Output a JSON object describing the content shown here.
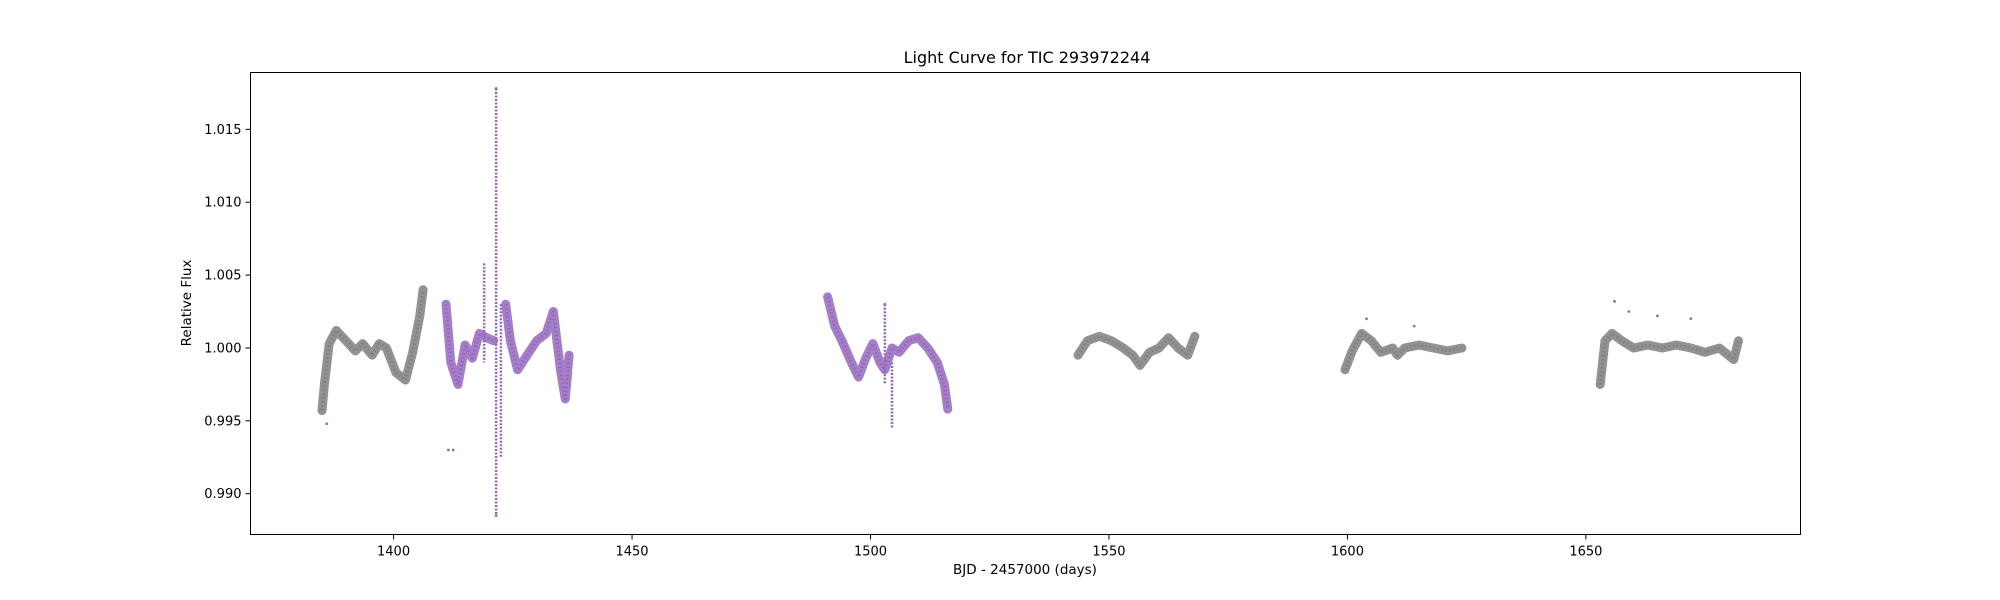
{
  "chart_data": {
    "type": "scatter",
    "title": "Light Curve for TIC 293972244",
    "xlabel": "BJD - 2457000 (days)",
    "ylabel": "Relative Flux",
    "xlim": [
      1370,
      1695
    ],
    "ylim": [
      0.9872,
      1.0189
    ],
    "xticks": [
      1400,
      1450,
      1500,
      1550,
      1600,
      1650
    ],
    "yticks": [
      0.99,
      0.995,
      1.0,
      1.005,
      1.01,
      1.015
    ],
    "ytick_labels": [
      "0.990",
      "0.995",
      "1.000",
      "1.005",
      "1.010",
      "1.015"
    ],
    "grid": false,
    "colors": {
      "gray": "#7f7f7f",
      "purple": "#9467bd"
    },
    "series": [
      {
        "color": "gray",
        "segments": [
          {
            "x": [
              1385.0,
              1385.5,
              1386.5,
              1388.0,
              1390.0,
              1392.0,
              1393.5,
              1395.5,
              1397.0,
              1398.5,
              1400.5,
              1402.5,
              1404.0,
              1405.5,
              1406.2
            ],
            "y": [
              0.9957,
              0.9975,
              1.0003,
              1.0012,
              1.0005,
              0.9998,
              1.0003,
              0.9995,
              1.0003,
              1.0,
              0.9983,
              0.9978,
              0.9997,
              1.0022,
              1.004
            ]
          },
          {
            "x": [
              1543.5,
              1545.5,
              1548.0,
              1550.5,
              1553.0,
              1555.0,
              1556.5,
              1558.5,
              1560.5,
              1562.5,
              1564.5,
              1566.5,
              1568.0
            ],
            "y": [
              0.9995,
              1.0005,
              1.0008,
              1.0005,
              1.0,
              0.9995,
              0.9988,
              0.9997,
              1.0,
              1.0007,
              1.0,
              0.9995,
              1.0008
            ]
          },
          {
            "x": [
              1599.5,
              1601.0,
              1603.0,
              1605.0,
              1607.0,
              1609.5,
              1610.5,
              1612.0,
              1615.0,
              1618.0,
              1621.0,
              1624.0
            ],
            "y": [
              0.9985,
              0.9998,
              1.001,
              1.0005,
              0.9997,
              1.0,
              0.9995,
              1.0,
              1.0002,
              1.0,
              0.9998,
              1.0
            ]
          },
          {
            "x": [
              1653.0,
              1654.0,
              1655.5,
              1657.5,
              1660.0,
              1663.0,
              1666.0,
              1669.0,
              1672.0,
              1675.0,
              1678.0,
              1681.0,
              1682.0
            ],
            "y": [
              0.9975,
              1.0005,
              1.001,
              1.0005,
              1.0,
              1.0002,
              1.0,
              1.0002,
              1.0,
              0.9997,
              1.0,
              0.9992,
              1.0005
            ]
          }
        ],
        "outliers": {
          "x": [
            1386.0,
            1411.5,
            1604.0,
            1614.0,
            1656.0,
            1659.0,
            1665.0,
            1672.0
          ],
          "y": [
            0.9948,
            0.993,
            1.002,
            1.0015,
            1.0032,
            1.0025,
            1.0022,
            1.002
          ]
        }
      },
      {
        "color": "purple",
        "segments": [
          {
            "x": [
              1411.0,
              1412.0,
              1413.5,
              1415.0,
              1416.5,
              1418.0,
              1419.5,
              1421.0
            ],
            "y": [
              1.003,
              0.999,
              0.9975,
              1.0002,
              0.9993,
              1.001,
              1.0007,
              1.0005
            ]
          },
          {
            "x": [
              1423.5,
              1424.5,
              1426.0,
              1428.0,
              1430.0,
              1432.0,
              1433.5,
              1435.0,
              1436.0,
              1436.8
            ],
            "y": [
              1.003,
              1.0005,
              0.9985,
              0.9995,
              1.0005,
              1.001,
              1.0025,
              0.9985,
              0.9965,
              0.9995
            ]
          },
          {
            "x": [
              1491.0,
              1492.5,
              1494.0,
              1496.0,
              1497.5,
              1499.0,
              1500.5,
              1502.0,
              1503.0,
              1504.5,
              1506.0,
              1508.0,
              1510.0,
              1512.0,
              1514.0,
              1515.5,
              1516.2
            ],
            "y": [
              1.0035,
              1.0015,
              1.0005,
              0.999,
              0.998,
              0.9993,
              1.0003,
              0.999,
              0.9985,
              1.0,
              0.9997,
              1.0005,
              1.0007,
              1.0,
              0.999,
              0.9975,
              0.9958
            ]
          }
        ],
        "spikes": [
          {
            "x": 1421.5,
            "y_min": 0.9885,
            "y_max": 1.0178
          },
          {
            "x": 1422.5,
            "y_min": 0.9925,
            "y_max": 1.003
          },
          {
            "x": 1419.0,
            "y_min": 0.999,
            "y_max": 1.0058
          },
          {
            "x": 1503.0,
            "y_min": 0.9975,
            "y_max": 1.003
          },
          {
            "x": 1504.5,
            "y_min": 0.9945,
            "y_max": 0.999
          }
        ],
        "outliers": {
          "x": [
            1412.5,
            1421.5,
            1421.5,
            1503.0
          ],
          "y": [
            0.993,
            0.9885,
            1.0178,
            1.003
          ]
        }
      }
    ]
  }
}
